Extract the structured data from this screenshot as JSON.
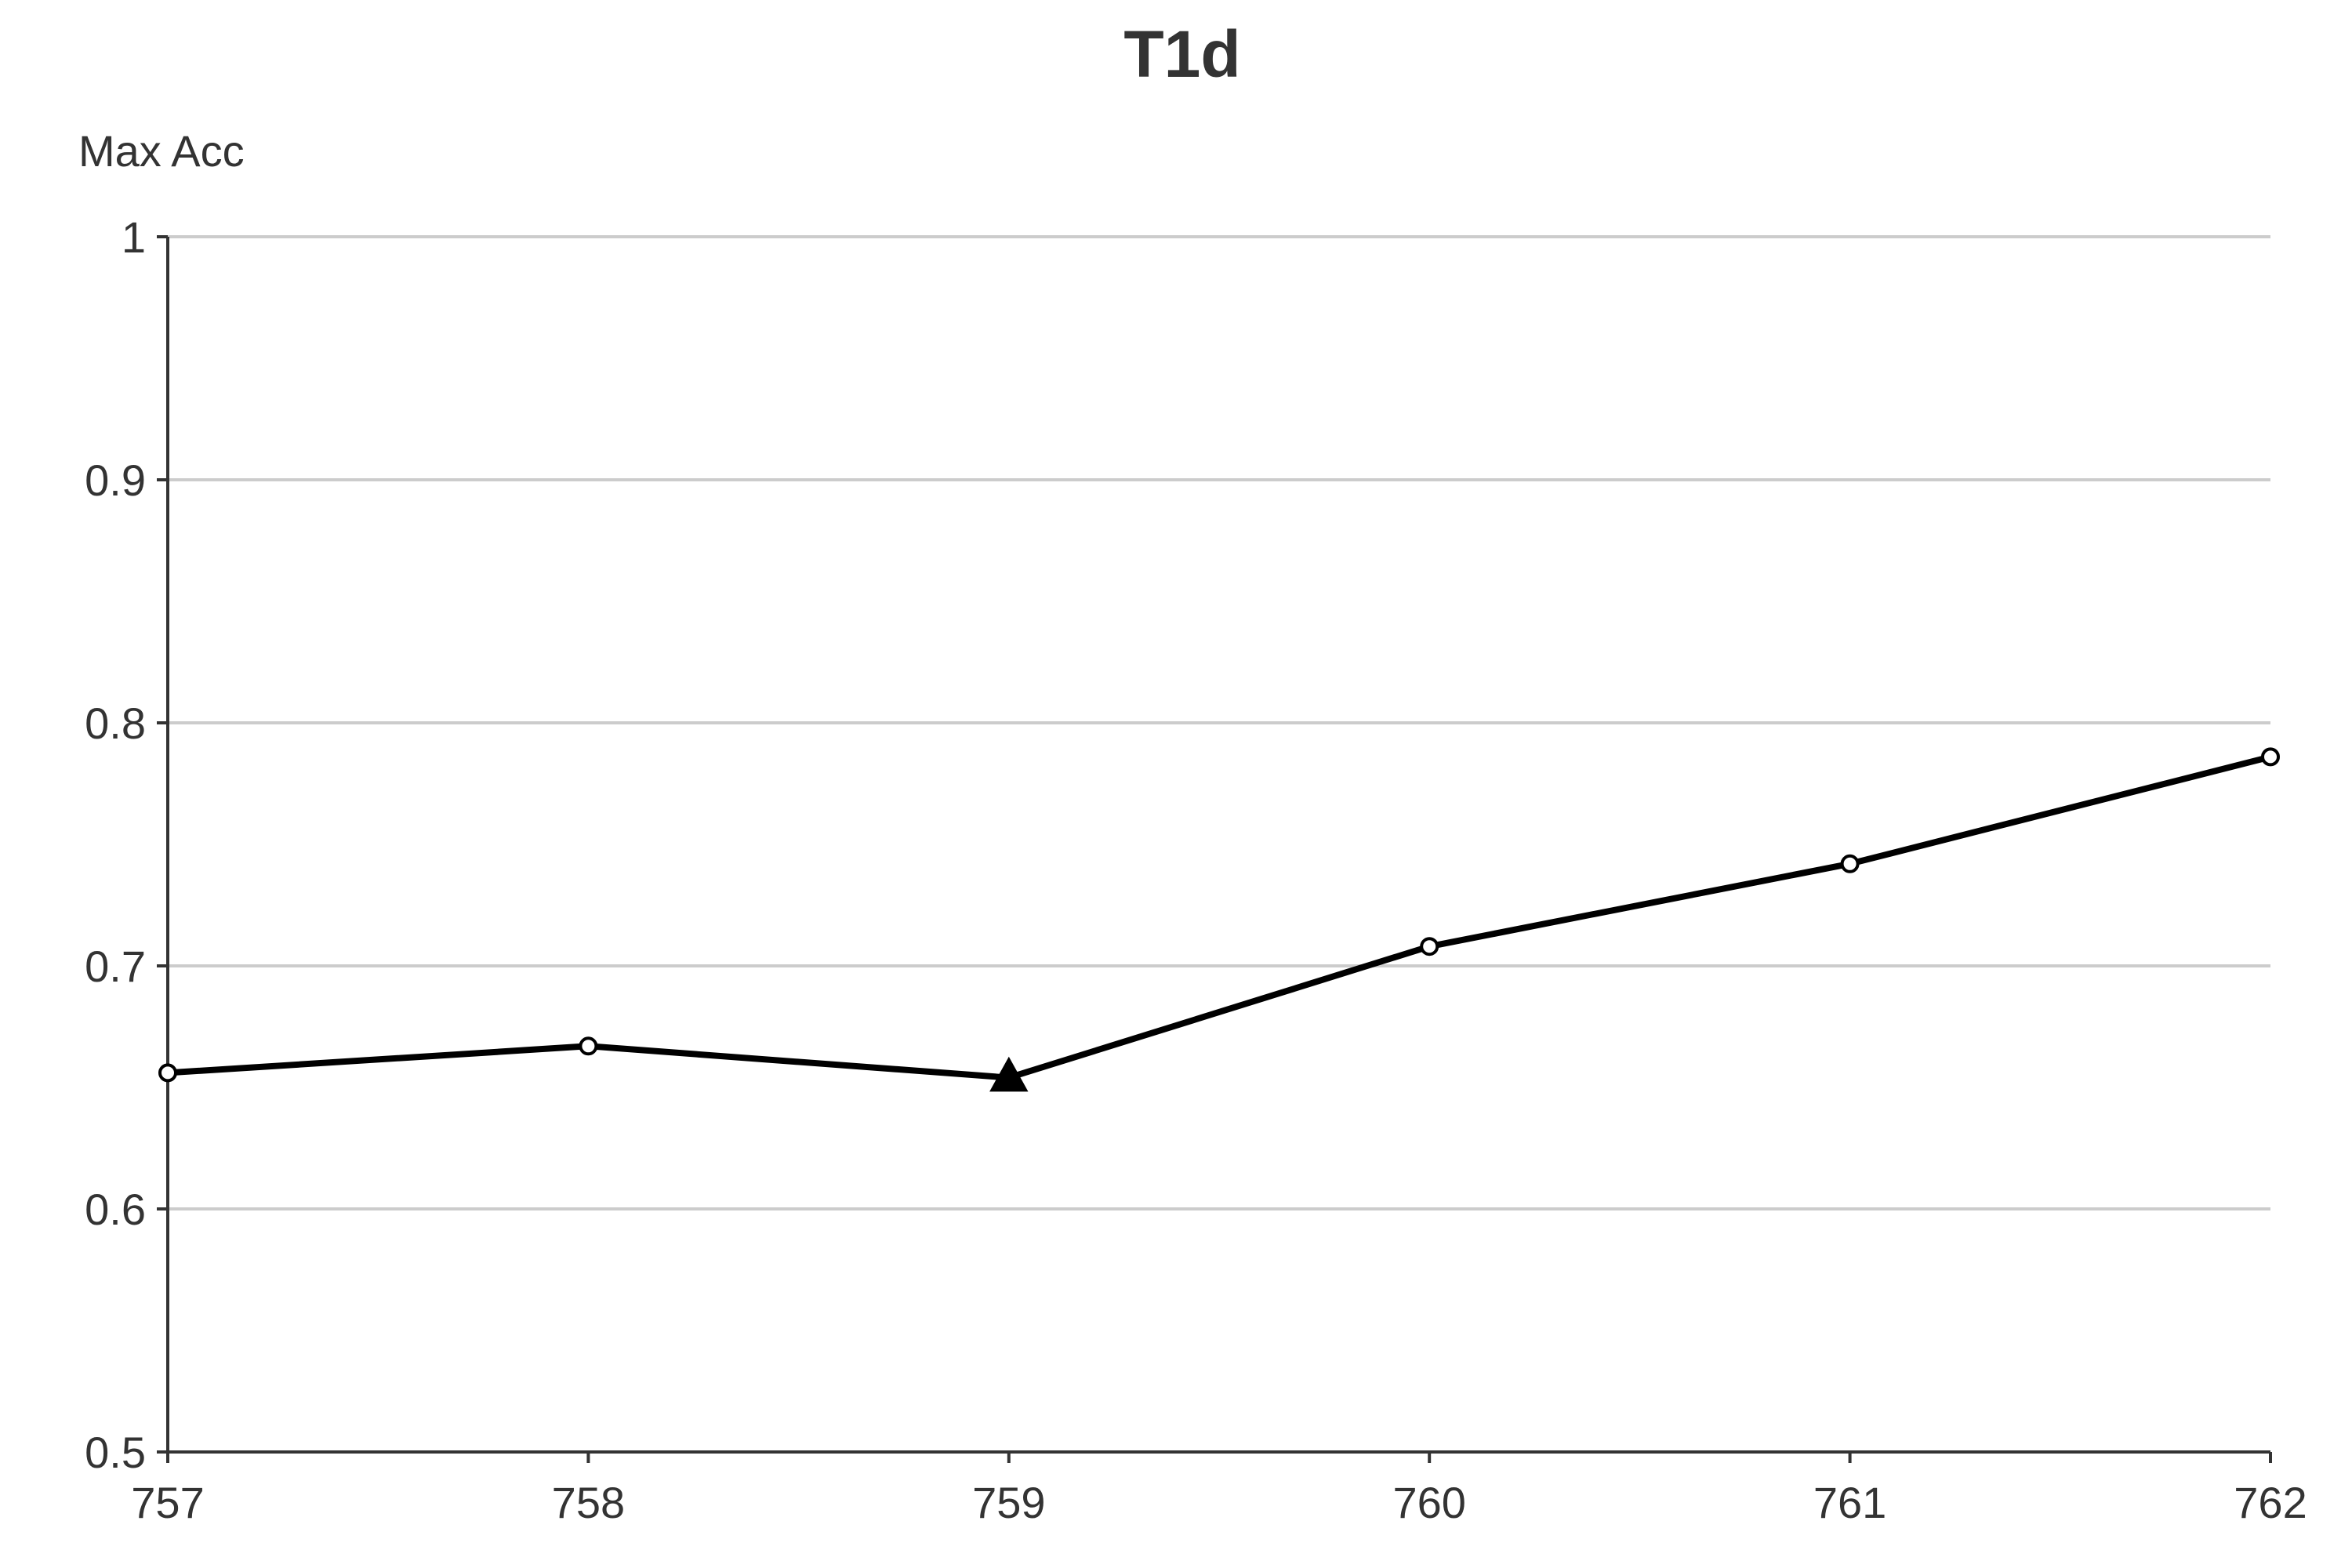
{
  "chart_data": {
    "type": "line",
    "title": "T1d",
    "ylabel": "Max Acc",
    "xlabel": "",
    "x": [
      757,
      758,
      759,
      760,
      761,
      762
    ],
    "x_tick_labels": [
      "757",
      "758",
      "759",
      "760",
      "761",
      "762"
    ],
    "ylim": [
      0.5,
      1
    ],
    "y_ticks": [
      0.5,
      0.6,
      0.7,
      0.8,
      0.9,
      1
    ],
    "y_tick_labels": [
      "0.5",
      "0.6",
      "0.7",
      "0.8",
      "0.9",
      "1"
    ],
    "grid": true,
    "series": [
      {
        "values": [
          0.656,
          0.667,
          0.654,
          0.708,
          0.742,
          0.786
        ],
        "markers": [
          "circle",
          "circle",
          "triangle",
          "circle",
          "circle",
          "circle"
        ],
        "color": "#000000"
      }
    ]
  }
}
